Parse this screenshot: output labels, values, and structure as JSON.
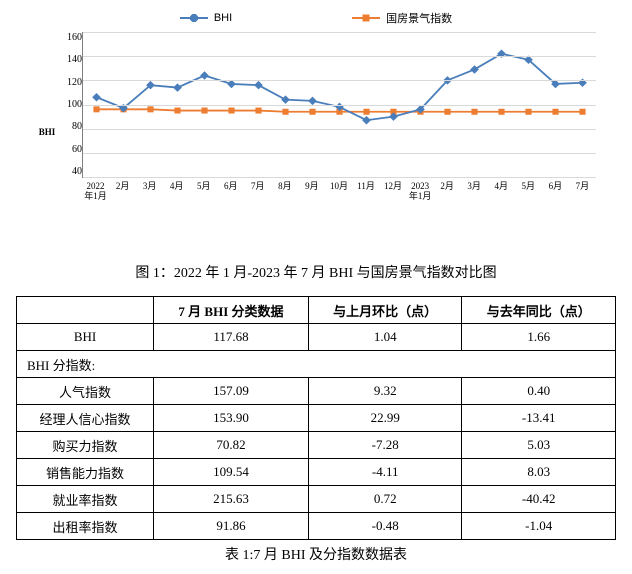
{
  "legend": {
    "series1": {
      "label": "BHI",
      "color": "#4a7ebb"
    },
    "series2": {
      "label": "国房景气指数",
      "color": "#ed7d31"
    }
  },
  "chart": {
    "y_axis_title": "BHI",
    "y_ticks": [
      "160",
      "140",
      "120",
      "100",
      "80",
      "60",
      "40"
    ],
    "y_min": 40,
    "y_max": 160,
    "x_labels": [
      "2022\n年1月",
      "2月",
      "3月",
      "4月",
      "5月",
      "6月",
      "7月",
      "8月",
      "9月",
      "10月",
      "11月",
      "12月",
      "2023\n年1月",
      "2月",
      "3月",
      "4月",
      "5月",
      "6月",
      "7月"
    ],
    "bhi_values": [
      106,
      97,
      116,
      114,
      124,
      117,
      116,
      104,
      103,
      98,
      87,
      90,
      96,
      120,
      129,
      142,
      137,
      117,
      118
    ],
    "guofang_values": [
      96,
      96,
      96,
      95,
      95,
      95,
      95,
      94,
      94,
      94,
      94,
      94,
      94,
      94,
      94,
      94,
      94,
      94,
      94
    ],
    "grid_color": "#d9d9d9",
    "axis_color": "#808080",
    "background": "#ffffff"
  },
  "figure_caption": "图 1：2022 年 1 月-2023 年 7 月 BHI 与国房景气指数对比图",
  "table": {
    "headers": [
      "",
      "7 月 BHI 分类数据",
      "与上月环比（点）",
      "与去年同比（点）"
    ],
    "rows": [
      {
        "label": "BHI",
        "c1": "117.68",
        "c2": "1.04",
        "c3": "1.66"
      }
    ],
    "sub_header": "BHI 分指数:",
    "sub_rows": [
      {
        "label": "人气指数",
        "c1": "157.09",
        "c2": "9.32",
        "c3": "0.40"
      },
      {
        "label": "经理人信心指数",
        "c1": "153.90",
        "c2": "22.99",
        "c3": "-13.41"
      },
      {
        "label": "购买力指数",
        "c1": "70.82",
        "c2": "-7.28",
        "c3": "5.03"
      },
      {
        "label": "销售能力指数",
        "c1": "109.54",
        "c2": "-4.11",
        "c3": "8.03"
      },
      {
        "label": "就业率指数",
        "c1": "215.63",
        "c2": "0.72",
        "c3": "-40.42"
      },
      {
        "label": "出租率指数",
        "c1": "91.86",
        "c2": "-0.48",
        "c3": "-1.04"
      }
    ],
    "caption": "表 1:7 月 BHI 及分指数数据表"
  }
}
